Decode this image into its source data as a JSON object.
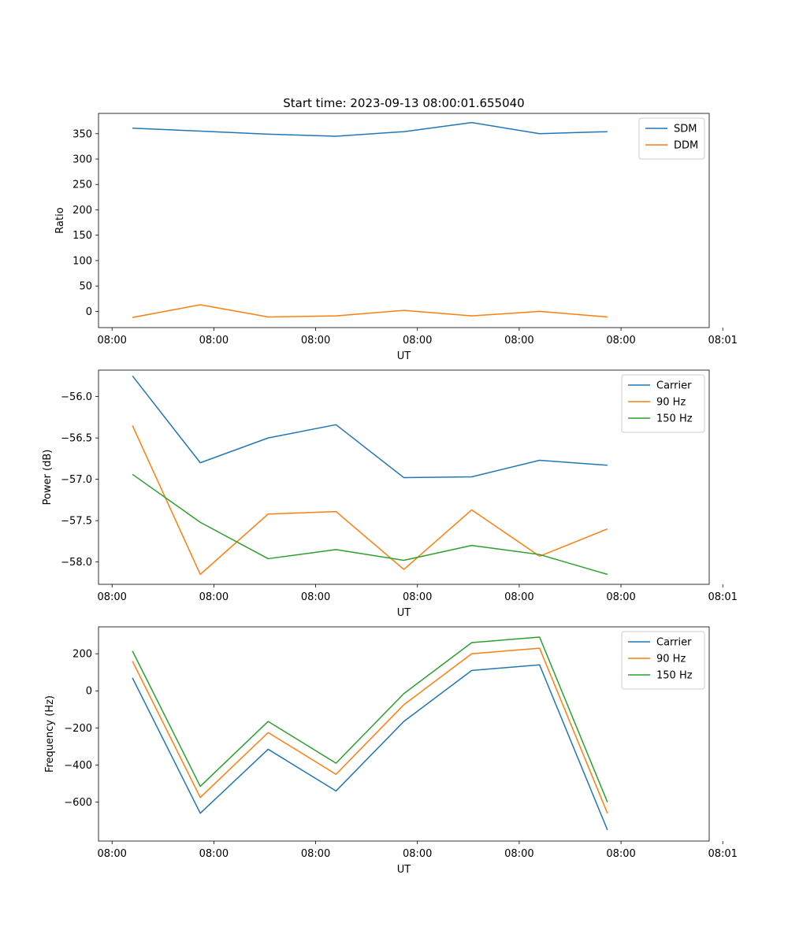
{
  "figure": {
    "title": "Start time: 2023-09-13 08:00:01.655040"
  },
  "chart_data": [
    {
      "type": "line",
      "xlabel": "UT",
      "ylabel": "Ratio",
      "x_tick_labels": [
        "08:00",
        "08:00",
        "08:00",
        "08:00",
        "08:00",
        "08:00",
        "08:01"
      ],
      "x": [
        0.5,
        1.5,
        2.5,
        3.5,
        4.5,
        5.5,
        6.5,
        7.5
      ],
      "xlim": [
        0,
        9
      ],
      "ylim": [
        -32,
        390
      ],
      "yticks": [
        0,
        50,
        100,
        150,
        200,
        250,
        300,
        350
      ],
      "legend_position": "top-right",
      "series": [
        {
          "name": "SDM",
          "color": "#1f77b4",
          "values": [
            361,
            355,
            349,
            345,
            354,
            372,
            350,
            354
          ]
        },
        {
          "name": "DDM",
          "color": "#ff7f0e",
          "values": [
            -12,
            13,
            -11,
            -9,
            2,
            -9,
            0,
            -11
          ]
        }
      ]
    },
    {
      "type": "line",
      "xlabel": "UT",
      "ylabel": "Power (dB)",
      "x_tick_labels": [
        "08:00",
        "08:00",
        "08:00",
        "08:00",
        "08:00",
        "08:00",
        "08:01"
      ],
      "x": [
        0.5,
        1.5,
        2.5,
        3.5,
        4.5,
        5.5,
        6.5,
        7.5
      ],
      "xlim": [
        0,
        9
      ],
      "ylim": [
        -58.27,
        -55.68
      ],
      "yticks": [
        -58.0,
        -57.5,
        -57.0,
        -56.5,
        -56.0
      ],
      "legend_position": "top-right",
      "series": [
        {
          "name": "Carrier",
          "color": "#1f77b4",
          "values": [
            -55.75,
            -56.8,
            -56.5,
            -56.34,
            -56.98,
            -56.97,
            -56.77,
            -56.83
          ]
        },
        {
          "name": "90 Hz",
          "color": "#ff7f0e",
          "values": [
            -56.35,
            -58.15,
            -57.42,
            -57.39,
            -58.09,
            -57.37,
            -57.93,
            -57.6
          ]
        },
        {
          "name": "150 Hz",
          "color": "#2ca02c",
          "values": [
            -56.94,
            -57.52,
            -57.96,
            -57.85,
            -57.98,
            -57.8,
            -57.91,
            -58.15
          ]
        }
      ]
    },
    {
      "type": "line",
      "xlabel": "UT",
      "ylabel": "Frequency (Hz)",
      "x_tick_labels": [
        "08:00",
        "08:00",
        "08:00",
        "08:00",
        "08:00",
        "08:00",
        "08:01"
      ],
      "x": [
        0.5,
        1.5,
        2.5,
        3.5,
        4.5,
        5.5,
        6.5,
        7.5
      ],
      "xlim": [
        0,
        9
      ],
      "ylim": [
        -810,
        345
      ],
      "yticks": [
        -600,
        -400,
        -200,
        0,
        200
      ],
      "legend_position": "top-right",
      "series": [
        {
          "name": "Carrier",
          "color": "#1f77b4",
          "values": [
            70,
            -660,
            -315,
            -540,
            -165,
            110,
            140,
            -750
          ]
        },
        {
          "name": "90 Hz",
          "color": "#ff7f0e",
          "values": [
            160,
            -575,
            -225,
            -450,
            -75,
            200,
            230,
            -660
          ]
        },
        {
          "name": "150 Hz",
          "color": "#2ca02c",
          "values": [
            215,
            -515,
            -165,
            -390,
            -15,
            260,
            290,
            -600
          ]
        }
      ]
    }
  ]
}
